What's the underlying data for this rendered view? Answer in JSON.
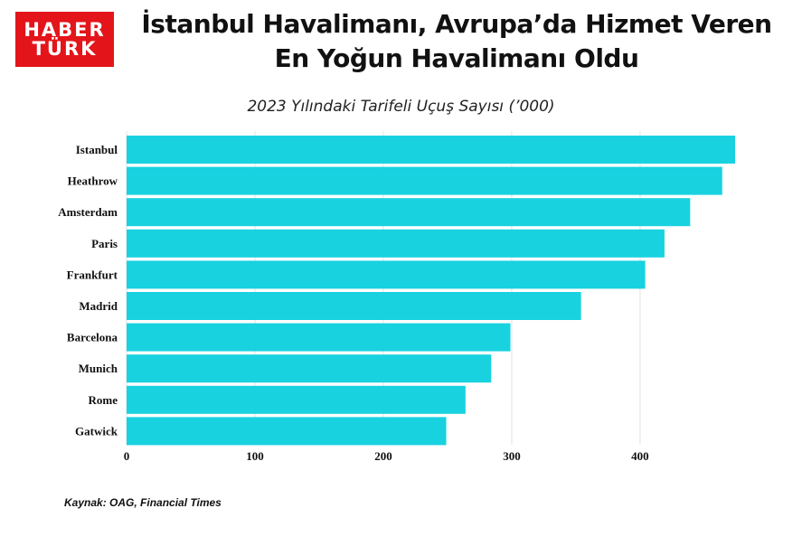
{
  "brand": {
    "line1": "HABER",
    "line2": "TÜRK",
    "color": "#e3151b"
  },
  "header": {
    "title_line1": "İstanbul Havalimanı, Avrupa’da Hizmet Veren",
    "title_line2": "En Yoğun Havalimanı Oldu"
  },
  "footer": {
    "source": "Kaynak: OAG, Financial Times"
  },
  "chart_data": {
    "type": "bar",
    "orientation": "horizontal",
    "title": "2023 Yılındaki Tarifeli Uçuş Sayısı (’000)",
    "categories": [
      "Istanbul",
      "Heathrow",
      "Amsterdam",
      "Paris",
      "Frankfurt",
      "Madrid",
      "Barcelona",
      "Munich",
      "Rome",
      "Gatwick"
    ],
    "values": [
      474,
      464,
      439,
      419,
      404,
      354,
      299,
      284,
      264,
      249
    ],
    "xlim": [
      0,
      474
    ],
    "xticks": [
      0,
      100,
      200,
      300,
      400
    ],
    "grid": true,
    "legend": "none",
    "bar_color": "#19d2e0",
    "grid_color": "#e2e2e2"
  }
}
